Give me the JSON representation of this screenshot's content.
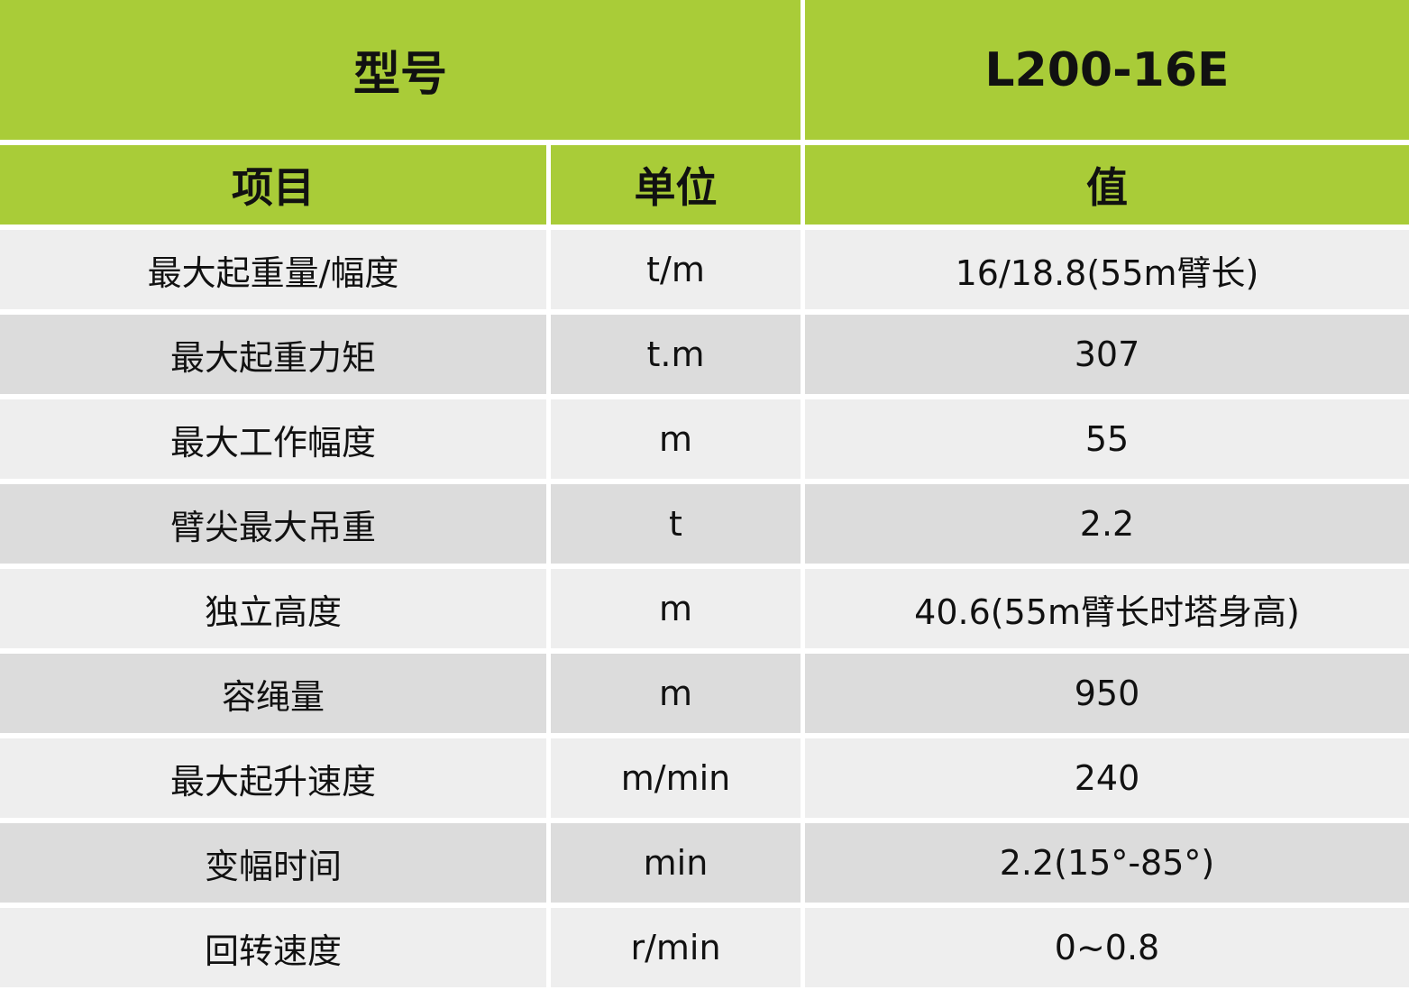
{
  "header": {
    "model_label": "型号",
    "model_value": "L200-16E"
  },
  "columns": [
    "项目",
    "单位",
    "值"
  ],
  "colors": {
    "header_green": "#a9cc38",
    "row_light": "#eeeeee",
    "row_dark": "#dcdcdc"
  },
  "rows": [
    {
      "item": "最大起重量/幅度",
      "unit": "t/m",
      "value": "16/18.8(55m臂长)"
    },
    {
      "item": "最大起重力矩",
      "unit": "t.m",
      "value": "307"
    },
    {
      "item": "最大工作幅度",
      "unit": "m",
      "value": "55"
    },
    {
      "item": "臂尖最大吊重",
      "unit": "t",
      "value": "2.2"
    },
    {
      "item": "独立高度",
      "unit": "m",
      "value": "40.6(55m臂长时塔身高)"
    },
    {
      "item": "容绳量",
      "unit": "m",
      "value": "950"
    },
    {
      "item": "最大起升速度",
      "unit": "m/min",
      "value": "240"
    },
    {
      "item": "变幅时间",
      "unit": "min",
      "value": "2.2(15°-85°)"
    },
    {
      "item": "回转速度",
      "unit": "r/min",
      "value": "0~0.8"
    }
  ]
}
